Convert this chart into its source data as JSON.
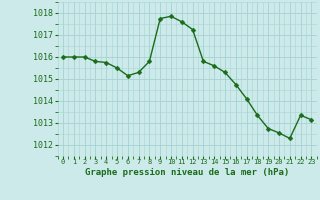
{
  "x": [
    0,
    1,
    2,
    3,
    4,
    5,
    6,
    7,
    8,
    9,
    10,
    11,
    12,
    13,
    14,
    15,
    16,
    17,
    18,
    19,
    20,
    21,
    22,
    23
  ],
  "y": [
    1016.0,
    1016.0,
    1016.0,
    1015.8,
    1015.75,
    1015.5,
    1015.15,
    1015.3,
    1015.8,
    1017.75,
    1017.85,
    1017.6,
    1017.25,
    1015.8,
    1015.6,
    1015.3,
    1014.75,
    1014.1,
    1013.35,
    1012.75,
    1012.55,
    1012.3,
    1013.35,
    1013.15
  ],
  "line_color": "#1a6b1a",
  "marker_color": "#1a6b1a",
  "bg_color": "#cceaea",
  "grid_color": "#aad4d4",
  "xlabel": "Graphe pression niveau de la mer (hPa)",
  "ylim": [
    1011.5,
    1018.5
  ],
  "xlim": [
    -0.5,
    23.5
  ],
  "yticks": [
    1012,
    1013,
    1014,
    1015,
    1016,
    1017,
    1018
  ],
  "xticks": [
    0,
    1,
    2,
    3,
    4,
    5,
    6,
    7,
    8,
    9,
    10,
    11,
    12,
    13,
    14,
    15,
    16,
    17,
    18,
    19,
    20,
    21,
    22,
    23
  ],
  "tick_label_color": "#1a6b1a",
  "xlabel_color": "#1a6b1a",
  "marker_size": 2.5,
  "line_width": 1.0
}
